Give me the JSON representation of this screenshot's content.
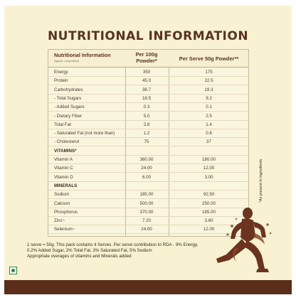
{
  "title": "NUTRITIONAL INFORMATION",
  "table": {
    "header": {
      "label": "Nutritional Information",
      "label_sub": "(Approx. composition)",
      "col1": "Per 100g Powder*",
      "col2": "Per Serve 50g Powder**"
    },
    "rows": [
      {
        "label": "Energy",
        "v1": "350",
        "v2": "175"
      },
      {
        "label": "Protein",
        "v1": "45.0",
        "v2": "22.5"
      },
      {
        "label": "Carbohydrates",
        "v1": "38.7",
        "v2": "19.3"
      },
      {
        "label": "- Total Sugars",
        "v1": "18.5",
        "v2": "9.2"
      },
      {
        "label": "- Added Sugars",
        "v1": "0.3",
        "v2": "0.1"
      },
      {
        "label": "- Dietary Fiber",
        "v1": "5.0",
        "v2": "2.5"
      },
      {
        "label": "Total Fat",
        "v1": "2.8",
        "v2": "1.4"
      },
      {
        "label": "- Saturated Fat (not more than)",
        "v1": "1.2",
        "v2": "0.6"
      },
      {
        "label": "- Cholesterol",
        "v1": "75",
        "v2": "37"
      },
      {
        "label": "VITAMINS*",
        "v1": "",
        "v2": ""
      },
      {
        "label": "Vitamin A",
        "v1": "360.00",
        "v2": "180.00"
      },
      {
        "label": "Vitamin C",
        "v1": "24.00",
        "v2": "12.00"
      },
      {
        "label": "Vitamin D",
        "v1": "6.00",
        "v2": "3.00"
      },
      {
        "label": "MINERALS",
        "v1": "",
        "v2": ""
      },
      {
        "label": "Sodium",
        "v1": "185.00",
        "v2": "92.50"
      },
      {
        "label": "Calcium",
        "v1": "500.00",
        "v2": "250.00"
      },
      {
        "label": "Phosphorus",
        "v1": "370.00",
        "v2": "185.00"
      },
      {
        "label": "Zinc~",
        "v1": "7.20",
        "v2": "3.60"
      },
      {
        "label": "Selenium~",
        "v1": "24.00",
        "v2": "12.00"
      }
    ]
  },
  "footnote": {
    "line1": "1 serve = 50g. This pack contains 4 Serves. Per serve contribution to RDA - 9% Energy,",
    "line2": "0.2% Added Sugar, 2% Total Fat,  3% Saturated Fat, 5% Sodium",
    "line3": "Appropriate overages of vitamins and Minerals added"
  },
  "side_note": "*As present in ingredients",
  "colors": {
    "panel": "#f8f2d2",
    "title": "#5b3222",
    "band": "#5a2e19",
    "veg_mark": "#2d8a3f"
  },
  "icons": {
    "veg_mark": "veg-symbol-icon",
    "figure": "chocolate-splash-athlete-icon"
  }
}
